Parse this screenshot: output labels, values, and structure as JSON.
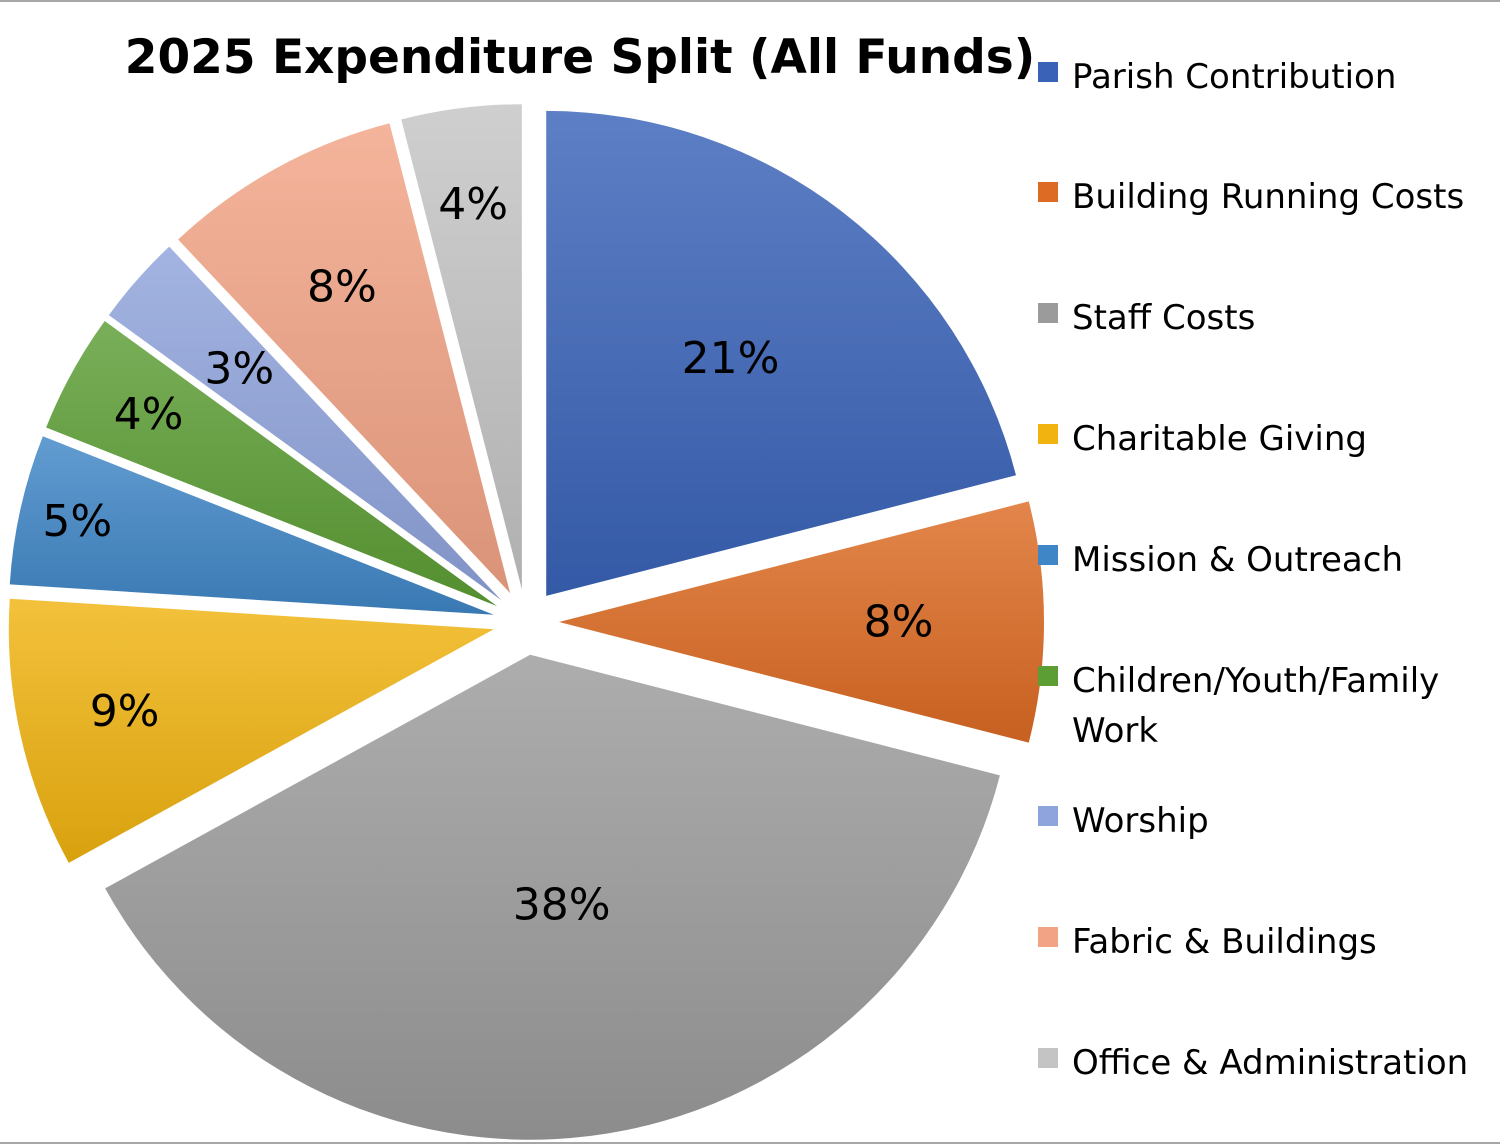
{
  "chart_data": {
    "type": "pie",
    "title": "2025 Expenditure Split (All Funds)",
    "legend_position": "right",
    "exploded": true,
    "slices": [
      {
        "label": "Parish Contribution",
        "value": 21,
        "display": "21%",
        "color": "#3a63b8"
      },
      {
        "label": "Building Running Costs",
        "value": 8,
        "display": "8%",
        "color": "#dd6b24"
      },
      {
        "label": "Staff Costs",
        "value": 38,
        "display": "38%",
        "color": "#9b9b9b"
      },
      {
        "label": "Charitable Giving",
        "value": 9,
        "display": "9%",
        "color": "#f0b310"
      },
      {
        "label": "Mission & Outreach",
        "value": 5,
        "display": "5%",
        "color": "#3f86c7"
      },
      {
        "label": "Children/Youth/Family Work",
        "value": 4,
        "display": "4%",
        "color": "#5c9e34"
      },
      {
        "label": "Worship",
        "value": 3,
        "display": "3%",
        "color": "#8fa3dc"
      },
      {
        "label": "Fabric & Buildings",
        "value": 8,
        "display": "8%",
        "color": "#f2a385"
      },
      {
        "label": "Office & Administration",
        "value": 4,
        "display": "4%",
        "color": "#c4c4c4"
      }
    ]
  }
}
